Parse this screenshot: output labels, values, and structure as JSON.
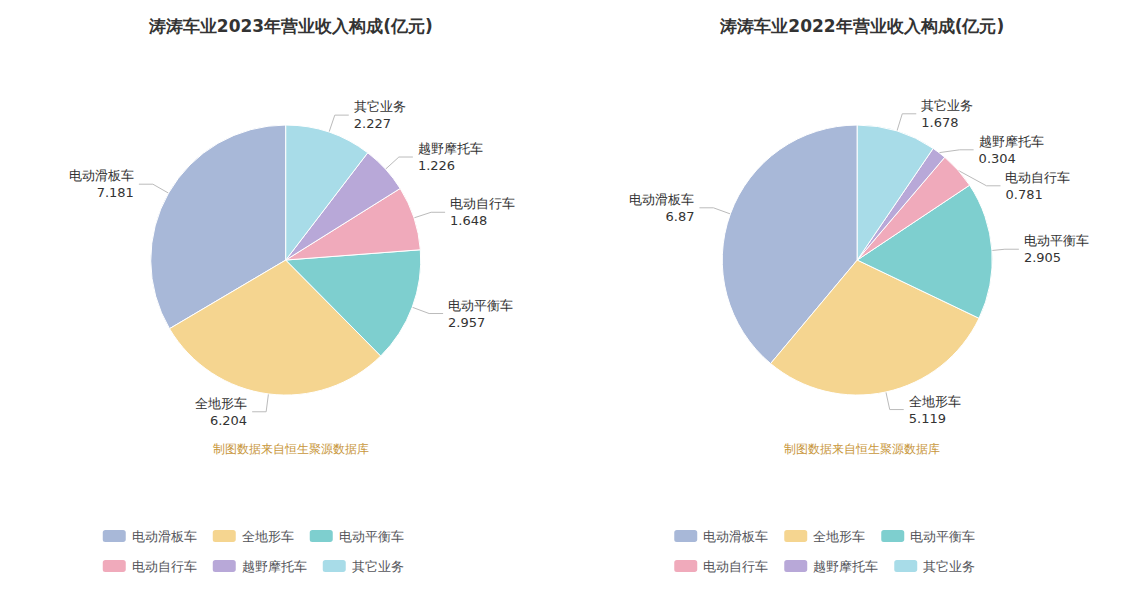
{
  "chart_data": [
    {
      "type": "pie",
      "title": "涛涛车业2023年营业收入构成(亿元)",
      "categories": [
        "电动滑板车",
        "全地形车",
        "电动平衡车",
        "电动自行车",
        "越野摩托车",
        "其它业务"
      ],
      "values": [
        7.181,
        6.204,
        2.957,
        1.648,
        1.226,
        2.227
      ],
      "colors": [
        "#a8b8d8",
        "#f5d590",
        "#7ecfcf",
        "#f0aabb",
        "#b8a8d8",
        "#a8dce8"
      ],
      "annotations": [
        "制图数据来自恒生聚源数据库"
      ],
      "data_labels": true,
      "legend": "bottom"
    },
    {
      "type": "pie",
      "title": "涛涛车业2022年营业收入构成(亿元)",
      "categories": [
        "电动滑板车",
        "全地形车",
        "电动平衡车",
        "电动自行车",
        "越野摩托车",
        "其它业务"
      ],
      "values": [
        6.87,
        5.119,
        2.905,
        0.781,
        0.304,
        1.678
      ],
      "colors": [
        "#a8b8d8",
        "#f5d590",
        "#7ecfcf",
        "#f0aabb",
        "#b8a8d8",
        "#a8dce8"
      ],
      "annotations": [
        "制图数据来自恒生聚源数据库"
      ],
      "data_labels": true,
      "legend": "bottom"
    }
  ]
}
